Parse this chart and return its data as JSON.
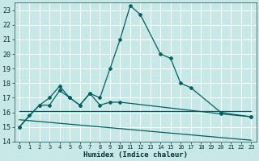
{
  "xlabel": "Humidex (Indice chaleur)",
  "xlim": [
    -0.5,
    23.5
  ],
  "ylim": [
    14,
    23.5
  ],
  "yticks": [
    14,
    15,
    16,
    17,
    18,
    19,
    20,
    21,
    22,
    23
  ],
  "xticks": [
    0,
    1,
    2,
    3,
    4,
    5,
    6,
    7,
    8,
    9,
    10,
    11,
    12,
    13,
    14,
    15,
    16,
    17,
    18,
    19,
    20,
    21,
    22,
    23
  ],
  "bg_color": "#c8e8e8",
  "grid_color": "#aad4d4",
  "line_color": "#006060",
  "series": [
    {
      "x": [
        0,
        1,
        2,
        3,
        4,
        5,
        6,
        7,
        8,
        9,
        10,
        11,
        12,
        14,
        15,
        16,
        17,
        20,
        23
      ],
      "y": [
        15.0,
        15.8,
        16.5,
        16.5,
        17.5,
        17.0,
        16.5,
        17.3,
        17.0,
        19.0,
        21.0,
        23.3,
        22.7,
        20.0,
        19.7,
        18.0,
        17.7,
        16.0,
        15.7
      ],
      "has_marker": true
    },
    {
      "x": [
        0,
        2,
        3,
        4,
        5,
        6,
        7,
        8,
        9,
        10,
        20,
        23
      ],
      "y": [
        15.0,
        16.5,
        17.0,
        17.8,
        17.0,
        16.5,
        17.3,
        16.5,
        16.7,
        16.7,
        15.9,
        15.7
      ],
      "has_marker": true
    },
    {
      "x": [
        0,
        23
      ],
      "y": [
        16.1,
        16.1
      ],
      "has_marker": false
    },
    {
      "x": [
        0,
        23
      ],
      "y": [
        15.5,
        14.1
      ],
      "has_marker": false
    }
  ],
  "marker": "D",
  "marker_size": 2.0,
  "linewidth": 0.9
}
